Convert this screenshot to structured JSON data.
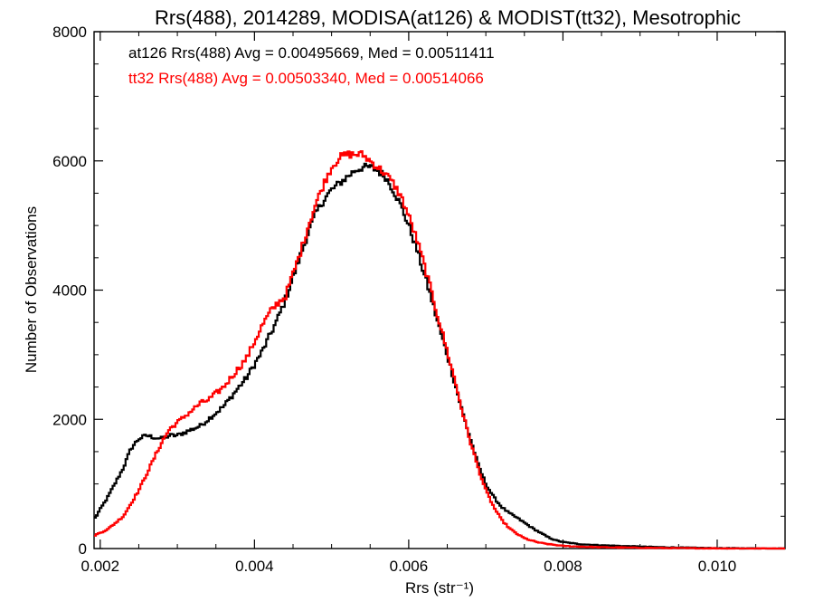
{
  "chart_data": {
    "type": "line",
    "title": "Rrs(488), 2014289, MODISA(at126) & MODIST(tt32), Mesotrophic",
    "xlabel": "Rrs (str⁻¹)",
    "ylabel": "Number of Observations",
    "xlim": [
      0.00192,
      0.01088
    ],
    "ylim": [
      0,
      8000
    ],
    "x_ticks": [
      0.002,
      0.004,
      0.006,
      0.008,
      0.01
    ],
    "x_tick_labels": [
      "0.002",
      "0.004",
      "0.006",
      "0.008",
      "0.010"
    ],
    "y_ticks": [
      0,
      2000,
      4000,
      6000,
      8000
    ],
    "y_tick_labels": [
      "0",
      "2000",
      "4000",
      "6000",
      "8000"
    ],
    "grid": false,
    "legend_position": "top-left",
    "step": true,
    "x": [
      0.00192,
      0.0021,
      0.0023,
      0.0024,
      0.0025,
      0.0026,
      0.0027,
      0.0028,
      0.0029,
      0.003,
      0.0031,
      0.0032,
      0.0033,
      0.0034,
      0.0035,
      0.0036,
      0.0037,
      0.0038,
      0.0039,
      0.004,
      0.0041,
      0.0042,
      0.0043,
      0.0044,
      0.0045,
      0.0046,
      0.0047,
      0.0048,
      0.0049,
      0.005,
      0.0051,
      0.0052,
      0.0053,
      0.0054,
      0.0055,
      0.0056,
      0.0057,
      0.0058,
      0.0059,
      0.006,
      0.0061,
      0.0062,
      0.0063,
      0.0064,
      0.0065,
      0.0066,
      0.0067,
      0.0068,
      0.0069,
      0.007,
      0.0071,
      0.0072,
      0.0073,
      0.0074,
      0.0075,
      0.0076,
      0.0077,
      0.0078,
      0.0079,
      0.008,
      0.0082,
      0.0085,
      0.009,
      0.0095,
      0.01,
      0.01088
    ],
    "series": [
      {
        "name": "at126",
        "color": "#000000",
        "values": [
          450,
          800,
          1250,
          1550,
          1700,
          1750,
          1720,
          1700,
          1750,
          1750,
          1800,
          1850,
          1900,
          2000,
          2100,
          2200,
          2350,
          2500,
          2650,
          2850,
          3050,
          3300,
          3550,
          3850,
          4200,
          4550,
          4900,
          5200,
          5400,
          5550,
          5650,
          5750,
          5850,
          5900,
          5900,
          5850,
          5750,
          5550,
          5300,
          5000,
          4650,
          4250,
          3850,
          3400,
          3000,
          2550,
          2100,
          1700,
          1300,
          1000,
          800,
          650,
          550,
          480,
          400,
          320,
          250,
          180,
          130,
          100,
          70,
          50,
          30,
          15,
          5,
          0
        ]
      },
      {
        "name": "tt32",
        "color": "#ff0000",
        "values": [
          200,
          300,
          500,
          700,
          900,
          1150,
          1400,
          1650,
          1850,
          1950,
          2050,
          2150,
          2250,
          2300,
          2400,
          2500,
          2650,
          2800,
          2950,
          3200,
          3450,
          3650,
          3800,
          3900,
          4250,
          4600,
          5000,
          5350,
          5650,
          5900,
          6050,
          6100,
          6100,
          6100,
          6000,
          5900,
          5800,
          5650,
          5450,
          5150,
          4800,
          4400,
          3950,
          3500,
          3050,
          2600,
          2100,
          1650,
          1250,
          900,
          650,
          450,
          320,
          230,
          160,
          120,
          90,
          70,
          55,
          40,
          30,
          20,
          12,
          6,
          3,
          0
        ]
      }
    ],
    "annotations": [
      {
        "text": "at126 Rrs(488) Avg = 0.00495669, Med = 0.00511411",
        "color": "#000000"
      },
      {
        "text": "tt32 Rrs(488) Avg = 0.00503340, Med = 0.00514066",
        "color": "#ff0000"
      }
    ]
  }
}
